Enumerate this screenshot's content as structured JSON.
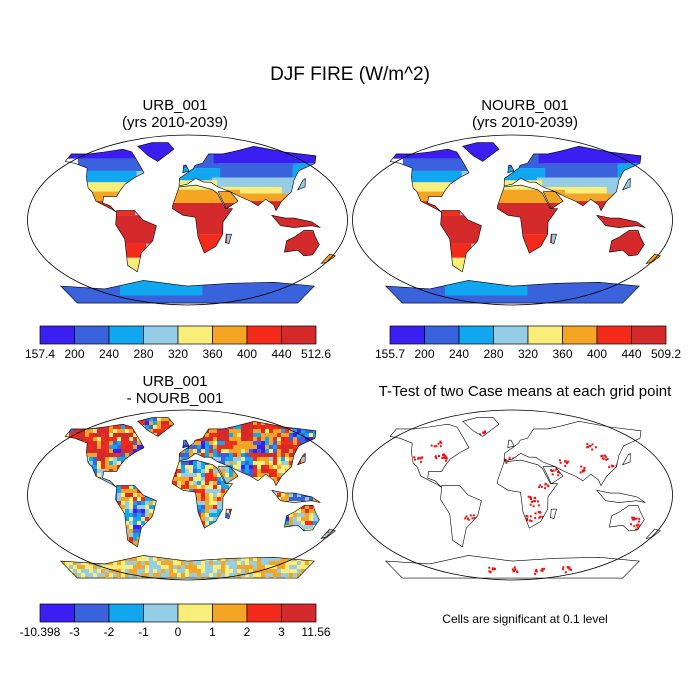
{
  "main_title": "DJF FIRE (W/m^2)",
  "panels": [
    {
      "title_line1": "URB_001",
      "title_line2": "(yrs 2010-2039)",
      "colorbar_labels": [
        "157.4",
        "200",
        "240",
        "280",
        "320",
        "360",
        "400",
        "440",
        "512.6"
      ]
    },
    {
      "title_line1": "NOURB_001",
      "title_line2": "(yrs 2010-2039)",
      "colorbar_labels": [
        "155.7",
        "200",
        "240",
        "280",
        "320",
        "360",
        "400",
        "440",
        "509.2"
      ]
    },
    {
      "title_line1": "URB_001",
      "title_line2": "- NOURB_001",
      "colorbar_labels": [
        "-10.398",
        "-3",
        "-2",
        "-1",
        "0",
        "1",
        "2",
        "3",
        "11.56"
      ]
    },
    {
      "title_line1": "T-Test of two Case means at each grid point"
    }
  ],
  "footnote": "Cells are significant at 0.1 level",
  "colors": {
    "abs_scale": [
      "#3b1ef2",
      "#3a62dc",
      "#11a7f0",
      "#96cde6",
      "#f9ee7a",
      "#f5a524",
      "#f42b1a",
      "#d42a2b"
    ],
    "diff_scale": [
      "#3b1ef2",
      "#3a62dc",
      "#11a7f0",
      "#96cde6",
      "#f9ee7a",
      "#f5a524",
      "#f42b1a",
      "#d42a2b"
    ],
    "significant": "#ee1111",
    "coastline": "#000000"
  }
}
